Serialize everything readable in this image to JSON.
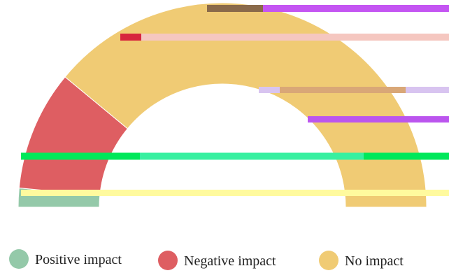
{
  "chart_data": {
    "type": "pie",
    "variant": "semicircle-donut",
    "title": "",
    "categories": [
      "Positive impact",
      "Negative impact",
      "No impact"
    ],
    "values": [
      3,
      19,
      78
    ],
    "colors": {
      "Positive impact": "#94c9a9",
      "Negative impact": "#de5e62",
      "No impact": "#f0cb74"
    },
    "legend": {
      "position": "bottom",
      "items": [
        {
          "label": "Positive impact",
          "color": "#94c9a9"
        },
        {
          "label": "Negative impact",
          "color": "#de5e62"
        },
        {
          "label": "No impact",
          "color": "#f0cb74"
        }
      ]
    }
  }
}
